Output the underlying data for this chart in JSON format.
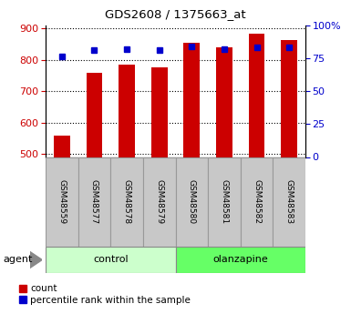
{
  "title": "GDS2608 / 1375663_at",
  "samples": [
    "GSM48559",
    "GSM48577",
    "GSM48578",
    "GSM48579",
    "GSM48580",
    "GSM48581",
    "GSM48582",
    "GSM48583"
  ],
  "counts": [
    558,
    757,
    783,
    775,
    855,
    838,
    882,
    862
  ],
  "percentiles": [
    76,
    81,
    82,
    81,
    84,
    82,
    83,
    83
  ],
  "bar_color": "#cc0000",
  "dot_color": "#0000cc",
  "ylim_left": [
    490,
    910
  ],
  "ylim_right": [
    0,
    100
  ],
  "yticks_left": [
    500,
    600,
    700,
    800,
    900
  ],
  "yticks_right": [
    0,
    25,
    50,
    75,
    100
  ],
  "ytick_labels_right": [
    "0",
    "25",
    "50",
    "75",
    "100%"
  ],
  "control_color": "#ccffcc",
  "olanzapine_color": "#66ff66",
  "agent_label": "agent",
  "legend_count": "count",
  "legend_percentile": "percentile rank within the sample",
  "bar_width": 0.5,
  "label_gray": "#c8c8c8",
  "label_border": "#999999"
}
